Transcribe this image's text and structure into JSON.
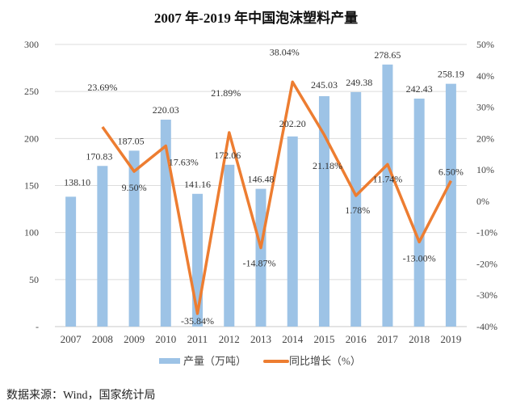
{
  "chart_data": {
    "type": "bar+line",
    "title": "2007 年-2019 年中国泡沫塑料产量",
    "categories": [
      "2007",
      "2008",
      "2009",
      "2010",
      "2011",
      "2012",
      "2013",
      "2014",
      "2015",
      "2016",
      "2017",
      "2018",
      "2019"
    ],
    "series": [
      {
        "name": "产量（万吨）",
        "type": "bar",
        "axis": "left",
        "color": "#9DC3E6",
        "values": [
          138.1,
          170.83,
          187.05,
          220.03,
          141.16,
          172.06,
          146.48,
          202.2,
          245.03,
          249.38,
          278.65,
          242.43,
          258.19
        ],
        "labels": [
          "138.10",
          "170.83",
          "187.05",
          "220.03",
          "141.16",
          "172.06",
          "146.48",
          "202.20",
          "245.03",
          "249.38",
          "278.65",
          "242.43",
          "258.19"
        ]
      },
      {
        "name": "同比增长（%）",
        "type": "line",
        "axis": "right",
        "color": "#ED7D31",
        "values": [
          null,
          23.69,
          9.5,
          17.63,
          -35.84,
          21.89,
          -14.87,
          38.04,
          21.18,
          1.78,
          11.74,
          -13.0,
          6.5
        ],
        "labels": [
          "",
          "23.69%",
          "9.50%",
          "17.63%",
          "-35.84%",
          "21.89%",
          "-14.87%",
          "38.04%",
          "21.18%",
          "1.78%",
          "11.74%",
          "-13.00%",
          "6.50%"
        ]
      }
    ],
    "ylim_left": [
      0,
      300
    ],
    "yticks_left": [
      "-",
      "50",
      "100",
      "150",
      "200",
      "250",
      "300"
    ],
    "ylim_right": [
      -40,
      50
    ],
    "yticks_right": [
      "-40%",
      "-30%",
      "-20%",
      "-10%",
      "0%",
      "10%",
      "20%",
      "30%",
      "40%",
      "50%"
    ],
    "grid": true,
    "legend": "bottom"
  },
  "source": "数据来源：Wind，国家统计局"
}
